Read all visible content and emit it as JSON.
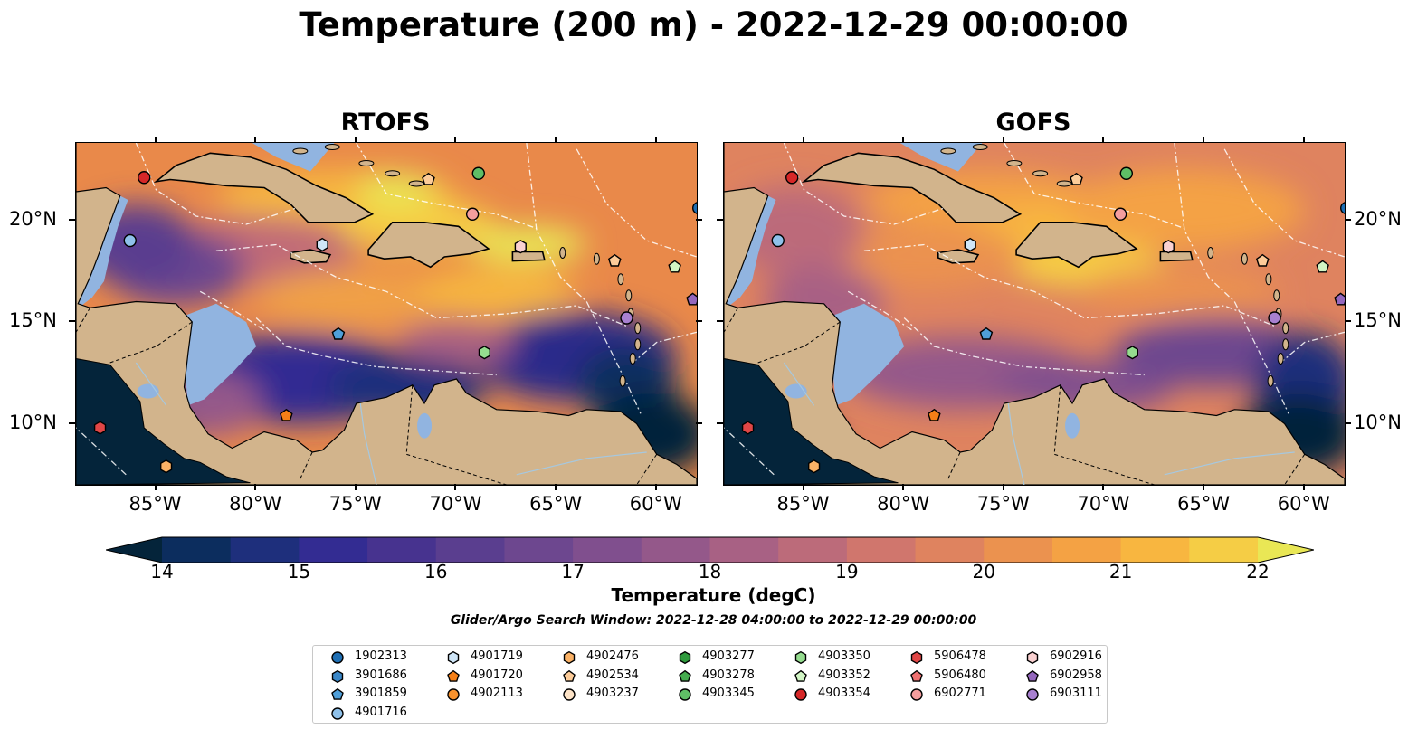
{
  "title": "Temperature (200 m) - 2022-12-29 00:00:00",
  "panels": [
    {
      "title": "RTOFS",
      "variant": "rtofs"
    },
    {
      "title": "GOFS",
      "variant": "gofs"
    }
  ],
  "axes": {
    "lon_ticks": [
      "85°W",
      "80°W",
      "75°W",
      "70°W",
      "65°W",
      "60°W"
    ],
    "lon_values": [
      -85,
      -80,
      -75,
      -70,
      -65,
      -60
    ],
    "lat_ticks": [
      "20°N",
      "15°N",
      "10°N"
    ],
    "lat_values": [
      20,
      15,
      10
    ],
    "lon_range": [
      -89,
      -58
    ],
    "lat_range": [
      7,
      23.8
    ]
  },
  "colorbar": {
    "title": "Temperature (degC)",
    "ticks": [
      "14",
      "15",
      "16",
      "17",
      "18",
      "19",
      "20",
      "21",
      "22"
    ],
    "range": [
      14,
      22
    ],
    "extend": "both",
    "colormap": "thermal"
  },
  "search_window": "Glider/Argo Search Window: 2022-12-28 04:00:00 to 2022-12-29 00:00:00",
  "legend": [
    {
      "id": "1902313",
      "shape": "circle",
      "color": "#1f6fb4"
    },
    {
      "id": "3901686",
      "shape": "hexagon",
      "color": "#3a87c8"
    },
    {
      "id": "3901859",
      "shape": "pentagon",
      "color": "#4f9fd9"
    },
    {
      "id": "4901716",
      "shape": "circle",
      "color": "#8fc1ea"
    },
    {
      "id": "4901719",
      "shape": "hexagon",
      "color": "#cfe6f8"
    },
    {
      "id": "4901720",
      "shape": "pentagon",
      "color": "#f57f17"
    },
    {
      "id": "4902113",
      "shape": "circle",
      "color": "#f7922e"
    },
    {
      "id": "4902476",
      "shape": "hexagon",
      "color": "#fbb266"
    },
    {
      "id": "4902534",
      "shape": "pentagon",
      "color": "#fdcc99"
    },
    {
      "id": "4903237",
      "shape": "circle",
      "color": "#fde3c7"
    },
    {
      "id": "4903277",
      "shape": "hexagon",
      "color": "#2e9a3c"
    },
    {
      "id": "4903278",
      "shape": "pentagon",
      "color": "#45ab4e"
    },
    {
      "id": "4903345",
      "shape": "circle",
      "color": "#5fbe66"
    },
    {
      "id": "4903350",
      "shape": "hexagon",
      "color": "#95dc8f"
    },
    {
      "id": "4903352",
      "shape": "pentagon",
      "color": "#d1f5c4"
    },
    {
      "id": "4903354",
      "shape": "circle",
      "color": "#d62728"
    },
    {
      "id": "5906478",
      "shape": "hexagon",
      "color": "#e04646"
    },
    {
      "id": "5906480",
      "shape": "pentagon",
      "color": "#ee7070"
    },
    {
      "id": "6902771",
      "shape": "circle",
      "color": "#f49e9e"
    },
    {
      "id": "6902916",
      "shape": "hexagon",
      "color": "#fad1d1"
    },
    {
      "id": "6902958",
      "shape": "pentagon",
      "color": "#9467bd"
    },
    {
      "id": "6903111",
      "shape": "circle",
      "color": "#a880d0"
    }
  ],
  "floats": [
    {
      "id": "4903354",
      "lon": -85.6,
      "lat": 22.1
    },
    {
      "id": "4901716",
      "lon": -86.3,
      "lat": 19.0
    },
    {
      "id": "5906478",
      "lon": -87.8,
      "lat": 9.8
    },
    {
      "id": "4902476",
      "lon": -84.5,
      "lat": 7.9
    },
    {
      "id": "4901720",
      "lon": -78.5,
      "lat": 10.4
    },
    {
      "id": "3901859",
      "lon": -75.9,
      "lat": 14.4
    },
    {
      "id": "4901719",
      "lon": -76.7,
      "lat": 18.8
    },
    {
      "id": "4902534",
      "lon": -71.4,
      "lat": 22.0
    },
    {
      "id": "4903345",
      "lon": -68.9,
      "lat": 22.3
    },
    {
      "id": "6902771",
      "lon": -69.2,
      "lat": 20.3
    },
    {
      "id": "6902916",
      "lon": -66.8,
      "lat": 18.7
    },
    {
      "id": "4903350",
      "lon": -68.6,
      "lat": 13.5
    },
    {
      "id": "4902534",
      "lon": -62.1,
      "lat": 18.0
    },
    {
      "id": "6903111",
      "lon": -61.5,
      "lat": 15.2
    },
    {
      "id": "4903352",
      "lon": -59.1,
      "lat": 17.7
    },
    {
      "id": "6902958",
      "lon": -58.2,
      "lat": 16.1
    },
    {
      "id": "1902313",
      "lon": -57.9,
      "lat": 20.6
    }
  ]
}
